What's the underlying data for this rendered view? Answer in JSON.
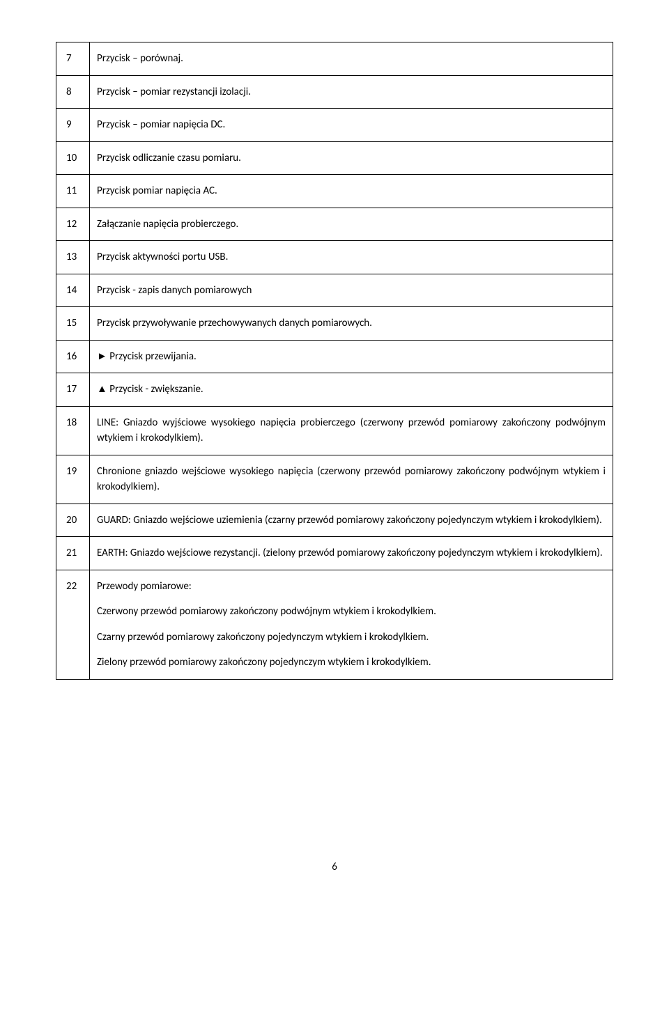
{
  "rows": [
    {
      "n": "7",
      "text": "Przycisk – porównaj."
    },
    {
      "n": "8",
      "text": "Przycisk – pomiar rezystancji izolacji."
    },
    {
      "n": "9",
      "text": "Przycisk – pomiar napięcia DC."
    },
    {
      "n": "10",
      "text": "Przycisk odliczanie czasu pomiaru."
    },
    {
      "n": "11",
      "text": "Przycisk pomiar napięcia AC."
    },
    {
      "n": "12",
      "text": "Załączanie napięcia probierczego."
    },
    {
      "n": "13",
      "text": "Przycisk aktywności portu USB."
    },
    {
      "n": "14",
      "text": "Przycisk - zapis danych pomiarowych"
    },
    {
      "n": "15",
      "text": "Przycisk przywoływanie przechowywanych danych pomiarowych."
    },
    {
      "n": "16",
      "text": "►   Przycisk przewijania.",
      "indent": 1
    },
    {
      "n": "17",
      "text": "▲   Przycisk -  zwiększanie.",
      "indent": 2
    },
    {
      "n": "18",
      "text": "LINE: Gniazdo wyjściowe wysokiego napięcia probierczego (czerwony przewód pomiarowy zakończony podwójnym wtykiem i krokodylkiem)."
    },
    {
      "n": "19",
      "text": "Chronione gniazdo wejściowe wysokiego napięcia (czerwony przewód pomiarowy zakończony podwójnym wtykiem i krokodylkiem)."
    },
    {
      "n": "20",
      "text": "GUARD: Gniazdo wejściowe uziemienia (czarny przewód pomiarowy zakończony pojedynczym wtykiem i krokodylkiem)."
    },
    {
      "n": "21",
      "text": "EARTH: Gniazdo wejściowe rezystancji. (zielony przewód pomiarowy zakończony pojedynczym wtykiem i krokodylkiem)."
    }
  ],
  "row22": {
    "n": "22",
    "paras": [
      "Przewody pomiarowe:",
      "Czerwony przewód pomiarowy zakończony podwójnym wtykiem i krokodylkiem.",
      "Czarny przewód pomiarowy zakończony pojedynczym wtykiem i krokodylkiem.",
      "Zielony przewód pomiarowy zakończony pojedynczym wtykiem i krokodylkiem."
    ]
  },
  "pageNumber": "6"
}
